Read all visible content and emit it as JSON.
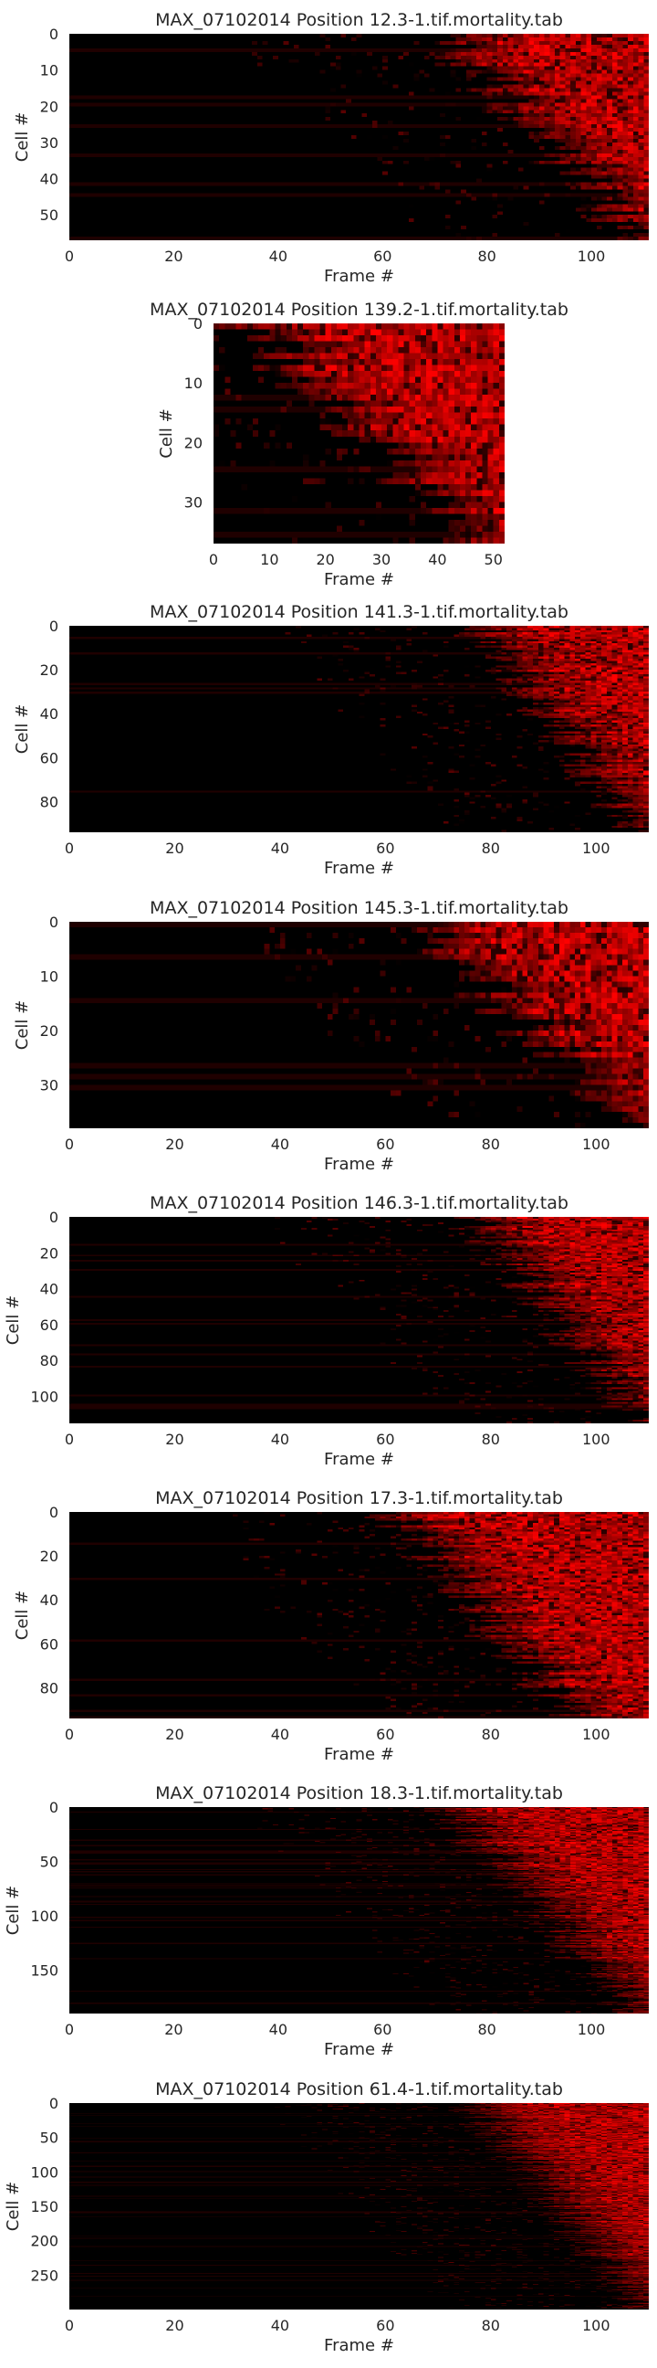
{
  "chart_data": [
    {
      "type": "heatmap",
      "title": "MAX_07102014 Position 12.3-1.tif.mortality.tab",
      "xlabel": "Frame #",
      "ylabel": "Cell #",
      "xticks": [
        0,
        20,
        40,
        60,
        80,
        100
      ],
      "yticks": [
        0,
        10,
        20,
        30,
        40,
        50
      ],
      "xlim": [
        0,
        111
      ],
      "ylim": [
        0,
        57
      ],
      "n_rows": 57,
      "n_cols": 111,
      "colormap": [
        "#000000",
        "#ff0000"
      ],
      "onset_frame_range": [
        70,
        108
      ],
      "grid": false,
      "legend": "none"
    },
    {
      "type": "heatmap",
      "title": "MAX_07102014 Position 139.2-1.tif.mortality.tab",
      "xlabel": "Frame #",
      "ylabel": "Cell #",
      "xticks": [
        0,
        10,
        20,
        30,
        40,
        50
      ],
      "yticks": [
        0,
        10,
        20,
        30
      ],
      "xlim": [
        0,
        52
      ],
      "ylim": [
        0,
        37
      ],
      "n_rows": 37,
      "n_cols": 52,
      "colormap": [
        "#000000",
        "#ff0000"
      ],
      "onset_frame_range": [
        5,
        45
      ],
      "grid": false,
      "legend": "none"
    },
    {
      "type": "heatmap",
      "title": "MAX_07102014 Position 141.3-1.tif.mortality.tab",
      "xlabel": "Frame #",
      "ylabel": "Cell #",
      "xticks": [
        0,
        20,
        40,
        60,
        80,
        100
      ],
      "yticks": [
        0,
        20,
        40,
        60,
        80
      ],
      "xlim": [
        0,
        110
      ],
      "ylim": [
        0,
        94
      ],
      "n_rows": 94,
      "n_cols": 110,
      "colormap": [
        "#000000",
        "#ff0000"
      ],
      "onset_frame_range": [
        76,
        108
      ],
      "grid": false,
      "legend": "none"
    },
    {
      "type": "heatmap",
      "title": "MAX_07102014 Position 145.3-1.tif.mortality.tab",
      "xlabel": "Frame #",
      "ylabel": "Cell #",
      "xticks": [
        0,
        20,
        40,
        60,
        80,
        100
      ],
      "yticks": [
        0,
        10,
        20,
        30
      ],
      "xlim": [
        0,
        110
      ],
      "ylim": [
        0,
        38
      ],
      "n_rows": 38,
      "n_cols": 110,
      "colormap": [
        "#000000",
        "#ff0000"
      ],
      "onset_frame_range": [
        65,
        105
      ],
      "grid": false,
      "legend": "none"
    },
    {
      "type": "heatmap",
      "title": "MAX_07102014 Position 146.3-1.tif.mortality.tab",
      "xlabel": "Frame #",
      "ylabel": "Cell #",
      "xticks": [
        0,
        20,
        40,
        60,
        80,
        100
      ],
      "yticks": [
        0,
        20,
        40,
        60,
        80,
        100
      ],
      "xlim": [
        0,
        110
      ],
      "ylim": [
        0,
        115
      ],
      "n_rows": 115,
      "n_cols": 110,
      "colormap": [
        "#000000",
        "#ff0000"
      ],
      "onset_frame_range": [
        76,
        108
      ],
      "grid": false,
      "legend": "none"
    },
    {
      "type": "heatmap",
      "title": "MAX_07102014 Position 17.3-1.tif.mortality.tab",
      "xlabel": "Frame #",
      "ylabel": "Cell #",
      "xticks": [
        0,
        20,
        40,
        60,
        80,
        100
      ],
      "yticks": [
        0,
        20,
        40,
        60,
        80
      ],
      "xlim": [
        0,
        110
      ],
      "ylim": [
        0,
        94
      ],
      "n_rows": 94,
      "n_cols": 110,
      "colormap": [
        "#000000",
        "#ff0000"
      ],
      "onset_frame_range": [
        60,
        95
      ],
      "grid": false,
      "legend": "none"
    },
    {
      "type": "heatmap",
      "title": "MAX_07102014 Position 18.3-1.tif.mortality.tab",
      "xlabel": "Frame #",
      "ylabel": "Cell #",
      "xticks": [
        0,
        20,
        40,
        60,
        80,
        100
      ],
      "yticks": [
        0,
        50,
        100,
        150
      ],
      "xlim": [
        0,
        111
      ],
      "ylim": [
        0,
        190
      ],
      "n_rows": 190,
      "n_cols": 111,
      "colormap": [
        "#000000",
        "#ff0000"
      ],
      "onset_frame_range": [
        72,
        108
      ],
      "grid": false,
      "legend": "none"
    },
    {
      "type": "heatmap",
      "title": "MAX_07102014 Position 61.4-1.tif.mortality.tab",
      "xlabel": "Frame #",
      "ylabel": "Cell #",
      "xticks": [
        0,
        20,
        40,
        60,
        80,
        100
      ],
      "yticks": [
        0,
        50,
        100,
        150,
        200,
        250
      ],
      "xlim": [
        0,
        110
      ],
      "ylim": [
        0,
        300
      ],
      "n_rows": 300,
      "n_cols": 110,
      "colormap": [
        "#000000",
        "#ff0000"
      ],
      "onset_frame_range": [
        76,
        108
      ],
      "grid": false,
      "legend": "none"
    }
  ]
}
